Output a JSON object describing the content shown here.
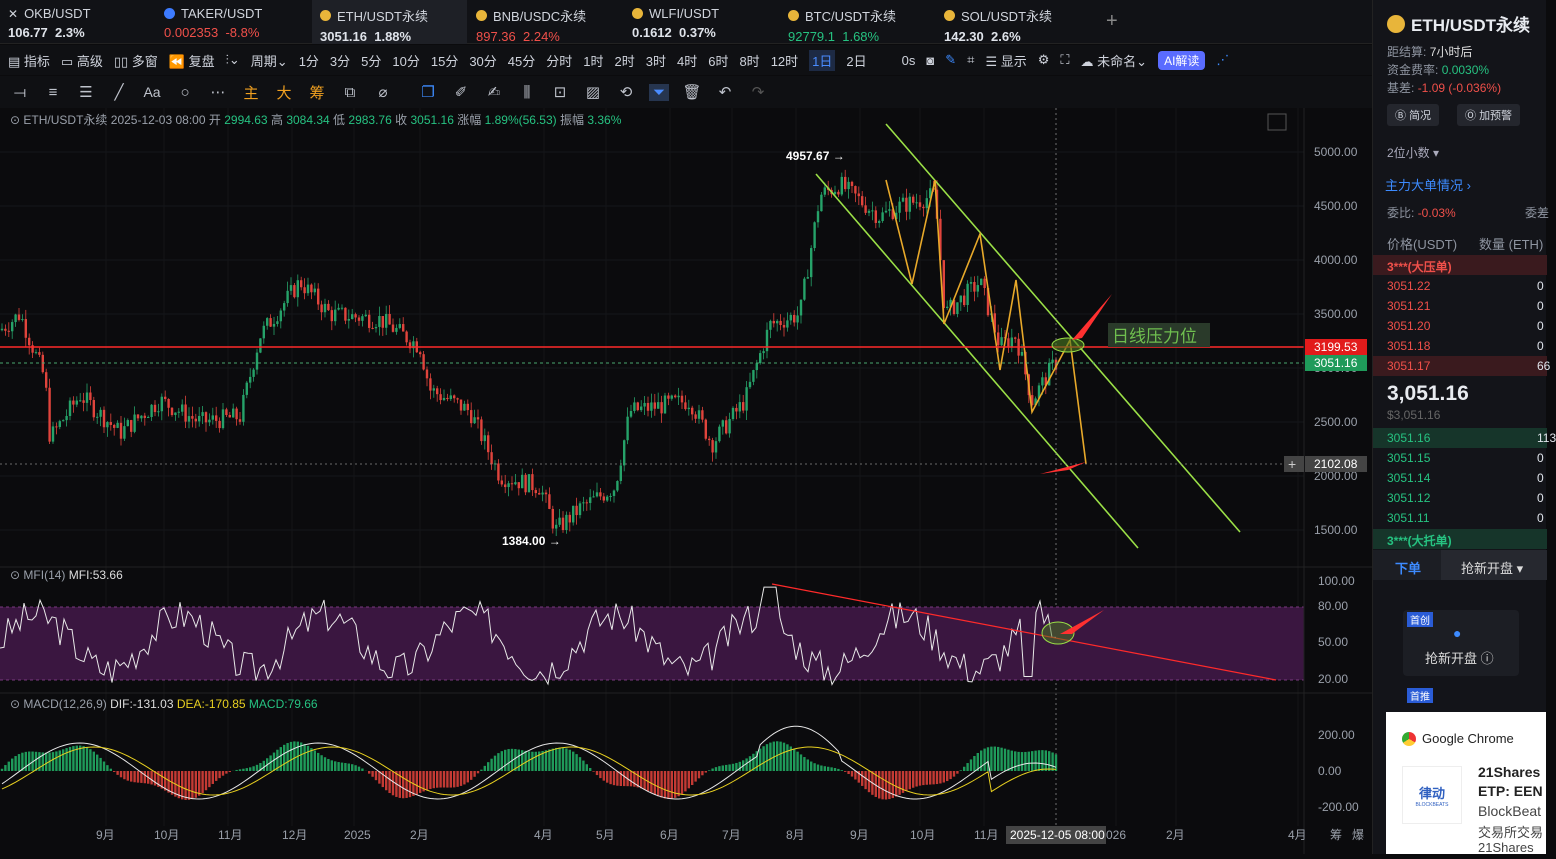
{
  "tabs": [
    {
      "name": "OKB/USDT",
      "price": "106.77",
      "change": "2.3%",
      "dir": "up",
      "icon": "close-icon"
    },
    {
      "name": "TAKER/USDT",
      "price": "0.002353",
      "change": "-8.8%",
      "dir": "dn",
      "icon": "coin-blue-icon"
    },
    {
      "name": "ETH/USDT永续",
      "price": "3051.16",
      "change": "1.88%",
      "dir": "wh",
      "icon": "coin-icon"
    },
    {
      "name": "BNB/USDC永续",
      "price": "897.36",
      "change": "2.24%",
      "dir": "dn",
      "icon": "coin-icon"
    },
    {
      "name": "WLFI/USDT",
      "price": "0.1612",
      "change": "0.37%",
      "dir": "wh",
      "icon": "coin-icon"
    },
    {
      "name": "BTC/USDT永续",
      "price": "92779.1",
      "change": "1.68%",
      "dir": "up",
      "icon": "coin-icon"
    },
    {
      "name": "SOL/USDT永续",
      "price": "142.30",
      "change": "2.6%",
      "dir": "wh",
      "icon": "coin-icon"
    }
  ],
  "toolbar1": {
    "indicators": "指标",
    "advanced": "高级",
    "multi": "多窗",
    "replay": "复盘",
    "period": "周期",
    "intervals": [
      "1分",
      "3分",
      "5分",
      "10分",
      "15分",
      "30分",
      "45分",
      "分时",
      "1时",
      "2时",
      "3时",
      "4时",
      "6时",
      "8时",
      "12时",
      "1日",
      "2日"
    ],
    "selected": "1日",
    "seconds": "0s",
    "display": "显示",
    "unnamed": "未命名",
    "ai": "AI解读"
  },
  "toolbar2": {
    "main": "主",
    "big": "大",
    "chip": "筹"
  },
  "ohlc": {
    "symbol": "ETH/USDT永续",
    "date": "2025-12-03 08:00",
    "open_label": "开",
    "open": "2994.63",
    "high_label": "高",
    "high": "3084.34",
    "low_label": "低",
    "low": "2983.76",
    "close_label": "收",
    "close": "3051.16",
    "chg_label": "涨幅",
    "chg": "1.89%(56.53)",
    "amp_label": "振幅",
    "amp": "3.36%"
  },
  "price_axis": [
    "5000.00",
    "4500.00",
    "4000.00",
    "3500.00",
    "3000.00",
    "2500.00",
    "2000.00",
    "1500.00"
  ],
  "price_tags": {
    "resistance": "3199.53",
    "last": "3051.16",
    "cross": "2102.08"
  },
  "annotations": {
    "high": "4957.67",
    "low": "1384.00",
    "resistance_label": "日线压力位"
  },
  "mfi": {
    "label": "MFI(14)",
    "value": "MFI:53.66",
    "axis": [
      "100.00",
      "80.00",
      "50.00",
      "20.00"
    ]
  },
  "macd": {
    "label": "MACD(12,26,9)",
    "dif": "DIF:-131.03",
    "dea": "DEA:-170.85",
    "macd": "MACD:79.66",
    "axis": [
      "200.00",
      "0.00",
      "-200.00"
    ]
  },
  "time_axis": [
    "9月",
    "10月",
    "11月",
    "12月",
    "2025",
    "2月",
    "4月",
    "5月",
    "6月",
    "7月",
    "8月",
    "9月",
    "10月",
    "11月",
    "026",
    "2月",
    "4月"
  ],
  "time_cursor": "2025-12-05 08:00",
  "corner": {
    "a": "筹",
    "b": "爆"
  },
  "side": {
    "title": "ETH/USDT永续",
    "settle_label": "距结算",
    "settle": "7小时后",
    "funding_label": "资金费率",
    "funding": "0.0030%",
    "basis_label": "基差",
    "basis": "-1.09 (-0.036%)",
    "btn1": "简况",
    "btn2": "加预警",
    "decimals": "2位小数",
    "bigorders": "主力大单情况",
    "ratio_label": "委比:",
    "ratio": "-0.03%",
    "ratio_right": "委差",
    "col_price": "价格(USDT)",
    "col_qty": "数量 (ETH)",
    "ask_header": "3***(大压单)",
    "asks": [
      {
        "p": "3051.22",
        "q": "0"
      },
      {
        "p": "3051.21",
        "q": "0"
      },
      {
        "p": "3051.20",
        "q": "0"
      },
      {
        "p": "3051.18",
        "q": "0"
      },
      {
        "p": "3051.17",
        "q": "66"
      }
    ],
    "mid": "3,051.16",
    "mid_sub": "$3,051.16",
    "bids": [
      {
        "p": "3051.16",
        "q": "113"
      },
      {
        "p": "3051.15",
        "q": "0"
      },
      {
        "p": "3051.14",
        "q": "0"
      },
      {
        "p": "3051.12",
        "q": "0"
      },
      {
        "p": "3051.11",
        "q": "0"
      }
    ],
    "bid_header": "3***(大托单)",
    "order_tab": "下单",
    "grab_tab": "抢新开盘",
    "card_tag": "首创",
    "card_title": "抢新开盘",
    "card_tag2": "首推"
  },
  "toast": {
    "app": "Google Chrome",
    "logo": "律动",
    "logo_sub": "BLOCKBEATS",
    "l1": "21Shares",
    "l2": "ETP: EEN",
    "l3": "BlockBeat",
    "l4": "交易所交易",
    "l5": "21Shares"
  }
}
